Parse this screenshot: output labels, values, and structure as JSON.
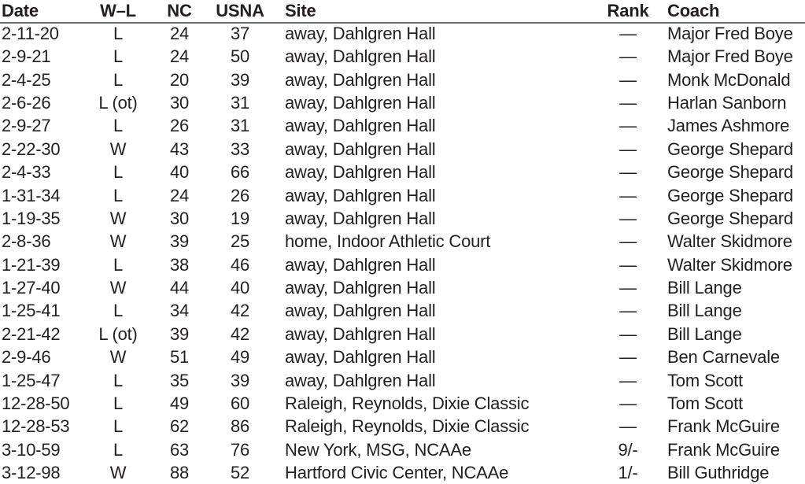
{
  "headers": {
    "date": "Date",
    "wl": "W–L",
    "nc": "NC",
    "usna": "USNA",
    "site": "Site",
    "rank": "Rank",
    "coach": "Coach"
  },
  "rows": [
    {
      "date": "2-11-20",
      "wl": "L",
      "nc": "24",
      "usna": "37",
      "site": "away, Dahlgren Hall",
      "rank": "—",
      "coach": "Major Fred Boye"
    },
    {
      "date": "2-9-21",
      "wl": "L",
      "nc": "24",
      "usna": "50",
      "site": "away, Dahlgren Hall",
      "rank": "—",
      "coach": "Major Fred Boye"
    },
    {
      "date": "2-4-25",
      "wl": "L",
      "nc": "20",
      "usna": "39",
      "site": "away, Dahlgren Hall",
      "rank": "—",
      "coach": "Monk McDonald"
    },
    {
      "date": "2-6-26",
      "wl": "L (ot)",
      "nc": "30",
      "usna": "31",
      "site": "away, Dahlgren Hall",
      "rank": "—",
      "coach": "Harlan Sanborn"
    },
    {
      "date": "2-9-27",
      "wl": "L",
      "nc": "26",
      "usna": "31",
      "site": "away, Dahlgren Hall",
      "rank": "—",
      "coach": "James Ashmore"
    },
    {
      "date": "2-22-30",
      "wl": "W",
      "nc": "43",
      "usna": "33",
      "site": "away, Dahlgren Hall",
      "rank": "—",
      "coach": "George Shepard"
    },
    {
      "date": "2-4-33",
      "wl": "L",
      "nc": "40",
      "usna": "66",
      "site": "away, Dahlgren Hall",
      "rank": "—",
      "coach": "George Shepard"
    },
    {
      "date": "1-31-34",
      "wl": "L",
      "nc": "24",
      "usna": "26",
      "site": "away, Dahlgren Hall",
      "rank": "—",
      "coach": "George Shepard"
    },
    {
      "date": "1-19-35",
      "wl": "W",
      "nc": "30",
      "usna": "19",
      "site": "away, Dahlgren Hall",
      "rank": "—",
      "coach": "George Shepard"
    },
    {
      "date": "2-8-36",
      "wl": "W",
      "nc": "39",
      "usna": "25",
      "site": "home, Indoor Athletic Court",
      "rank": "—",
      "coach": "Walter Skidmore"
    },
    {
      "date": "1-21-39",
      "wl": "L",
      "nc": "38",
      "usna": "46",
      "site": "away, Dahlgren Hall",
      "rank": "—",
      "coach": "Walter Skidmore"
    },
    {
      "date": "1-27-40",
      "wl": "W",
      "nc": "44",
      "usna": "40",
      "site": "away, Dahlgren Hall",
      "rank": "—",
      "coach": "Bill Lange"
    },
    {
      "date": "1-25-41",
      "wl": "L",
      "nc": "34",
      "usna": "42",
      "site": "away, Dahlgren Hall",
      "rank": "—",
      "coach": "Bill Lange"
    },
    {
      "date": "2-21-42",
      "wl": "L (ot)",
      "nc": "39",
      "usna": "42",
      "site": "away, Dahlgren Hall",
      "rank": "—",
      "coach": "Bill Lange"
    },
    {
      "date": "2-9-46",
      "wl": "W",
      "nc": "51",
      "usna": "49",
      "site": "away, Dahlgren Hall",
      "rank": "—",
      "coach": "Ben Carnevale"
    },
    {
      "date": "1-25-47",
      "wl": "L",
      "nc": "35",
      "usna": "39",
      "site": "away, Dahlgren Hall",
      "rank": "—",
      "coach": "Tom Scott"
    },
    {
      "date": "12-28-50",
      "wl": "L",
      "nc": "49",
      "usna": "60",
      "site": "Raleigh, Reynolds, Dixie Classic",
      "rank": "—",
      "coach": "Tom Scott"
    },
    {
      "date": "12-28-53",
      "wl": "L",
      "nc": "62",
      "usna": "86",
      "site": "Raleigh, Reynolds, Dixie Classic",
      "rank": "—",
      "coach": "Frank McGuire"
    },
    {
      "date": "3-10-59",
      "wl": "L",
      "nc": "63",
      "usna": "76",
      "site": "New York, MSG, NCAAe",
      "rank": "9/-",
      "coach": "Frank McGuire"
    },
    {
      "date": "3-12-98",
      "wl": "W",
      "nc": "88",
      "usna": "52",
      "site": "Hartford Civic Center, NCAAe",
      "rank": "1/-",
      "coach": "Bill Guthridge"
    }
  ]
}
